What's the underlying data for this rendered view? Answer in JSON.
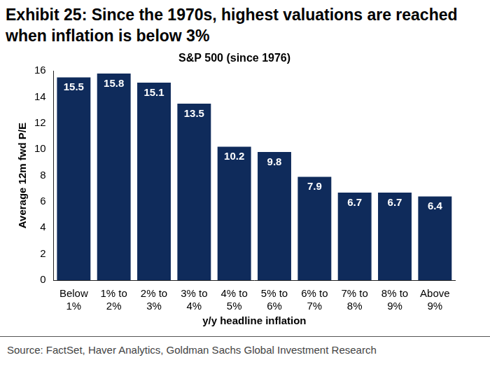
{
  "chart_data": {
    "type": "bar",
    "title": "Exhibit 25: Since the 1970s, highest valuations are reached when inflation is below 3%",
    "subtitle": "S&P 500 (since 1976)",
    "x_label": "y/y headline inflation",
    "y_label": "Average 12m fwd P/E",
    "source": "Source: FactSet, Haver Analytics, Goldman Sachs Global Investment Research",
    "categories": [
      "Below 1%",
      "1% to 2%",
      "2% to 3%",
      "3% to 4%",
      "4% to 5%",
      "5% to 6%",
      "6% to 7%",
      "7% to 8%",
      "8% to 9%",
      "Above 9%"
    ],
    "values": [
      15.5,
      15.8,
      15.1,
      13.5,
      10.2,
      9.8,
      7.9,
      6.7,
      6.7,
      6.4
    ],
    "color": "#0f2b5b",
    "ylim": [
      0,
      16
    ],
    "yticks": [
      0,
      2,
      4,
      6,
      8,
      10,
      12,
      14,
      16
    ],
    "grid": false,
    "data_labels": true
  }
}
